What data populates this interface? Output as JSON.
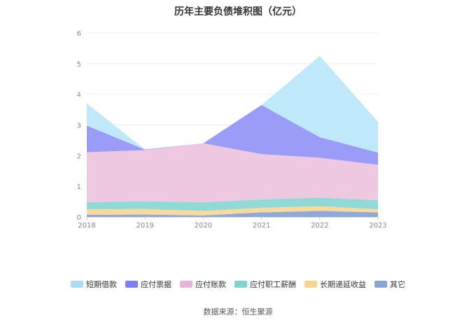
{
  "chart_data": {
    "type": "area",
    "stacked": true,
    "title": "历年主要负债堆积图（亿元）",
    "x": [
      "2018",
      "2019",
      "2020",
      "2021",
      "2022",
      "2023"
    ],
    "ylim": [
      0,
      6
    ],
    "yticks": [
      "0",
      "1",
      "2",
      "3",
      "4",
      "5",
      "6"
    ],
    "grid": true,
    "legend_position": "bottom",
    "series": [
      {
        "name": "其它",
        "color": "#8fa8d8",
        "values": [
          0.07,
          0.08,
          0.05,
          0.15,
          0.2,
          0.15
        ]
      },
      {
        "name": "长期递延收益",
        "color": "#fcd89a",
        "values": [
          0.18,
          0.18,
          0.15,
          0.15,
          0.15,
          0.1
        ]
      },
      {
        "name": "应付职工薪酬",
        "color": "#8fd9d6",
        "values": [
          0.23,
          0.25,
          0.28,
          0.27,
          0.28,
          0.3
        ]
      },
      {
        "name": "应付账款",
        "color": "#eec7e0",
        "values": [
          1.63,
          1.67,
          1.92,
          1.48,
          1.3,
          1.15
        ]
      },
      {
        "name": "应付票据",
        "color": "#9b9cf7",
        "values": [
          0.87,
          0.02,
          0.0,
          1.6,
          0.67,
          0.4
        ]
      },
      {
        "name": "短期借款",
        "color": "#bfe9fb",
        "values": [
          0.72,
          0.0,
          0.0,
          0.0,
          2.65,
          1.0
        ]
      }
    ],
    "legend_order": [
      "短期借款",
      "应付票据",
      "应付账款",
      "应付职工薪酬",
      "长期递延收益",
      "其它"
    ],
    "legend_colors": {
      "短期借款": "#a9dcf8",
      "应付票据": "#7d7ef4",
      "应付账款": "#e7b3d6",
      "应付职工薪酬": "#7fd3d0",
      "长期递延收益": "#fad48e",
      "其它": "#8aa6d9"
    }
  },
  "source": "数据来源：恒生聚源"
}
